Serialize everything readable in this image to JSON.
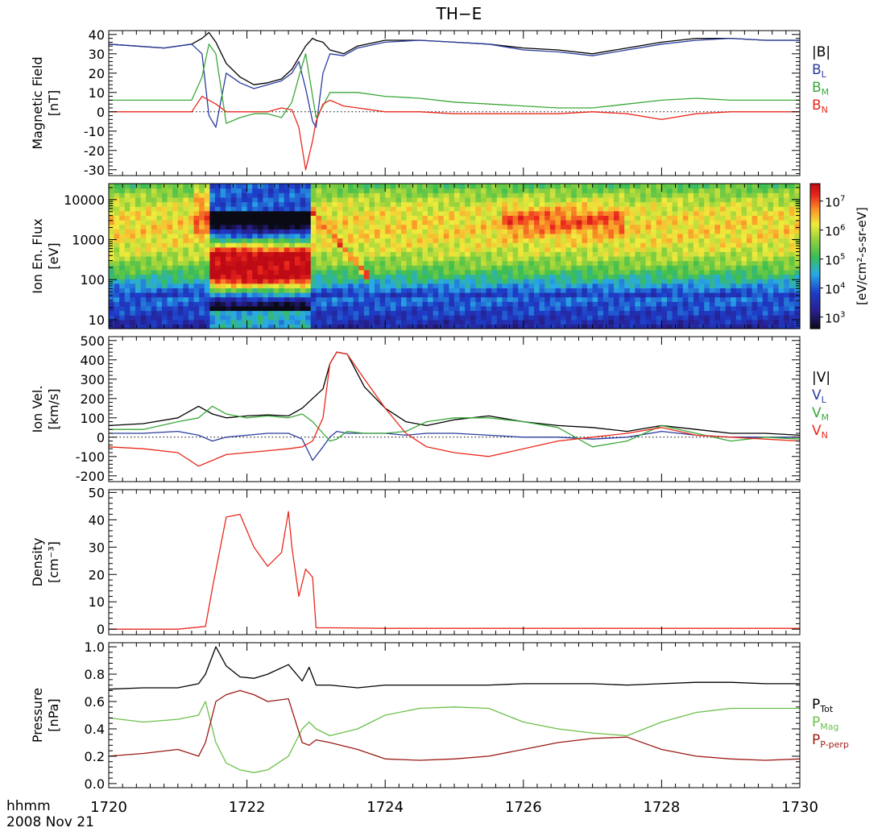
{
  "title": "TH−E",
  "time_axis": {
    "label_line1": "hhmm",
    "label_line2": "2008 Nov 21",
    "range": [
      1720,
      1730
    ],
    "ticks": [
      "1720",
      "1722",
      "1724",
      "1726",
      "1728",
      "1730"
    ],
    "tick_values": [
      0,
      2,
      4,
      6,
      8,
      10
    ]
  },
  "colors": {
    "black": "#000000",
    "blue": "#2b3c9e",
    "green": "#3aa83a",
    "red": "#e8291c",
    "darkred": "#9a1a14",
    "lightgreen": "#6cc04a"
  },
  "chart_data": [
    {
      "id": "bfield",
      "type": "line",
      "ylabel_line1": "Magnetic Field",
      "ylabel_line2": "[nT]",
      "ylim": [
        -33,
        42
      ],
      "yticks": [
        -30,
        -20,
        -10,
        0,
        10,
        20,
        30,
        40
      ],
      "zero_line": true,
      "x": [
        0,
        0.4,
        0.8,
        1.2,
        1.35,
        1.45,
        1.55,
        1.7,
        1.9,
        2.1,
        2.3,
        2.5,
        2.65,
        2.75,
        2.85,
        2.95,
        3.0,
        3.1,
        3.2,
        3.4,
        3.6,
        4.0,
        4.5,
        5.0,
        5.5,
        6.0,
        6.5,
        7.0,
        7.5,
        8.0,
        8.5,
        9.0,
        9.5,
        10
      ],
      "series": [
        {
          "name": "|B|",
          "legend": "|B|",
          "sub": "",
          "color": "#000000",
          "values": [
            35,
            34,
            33,
            35,
            38,
            41,
            36,
            25,
            18,
            14,
            15,
            17,
            22,
            28,
            34,
            38,
            37,
            36,
            32,
            30,
            34,
            37,
            37,
            36,
            35,
            33,
            32,
            30,
            33,
            36,
            38,
            38,
            37,
            37
          ]
        },
        {
          "name": "B_L",
          "legend": "B",
          "sub": "L",
          "color": "#2b3c9e",
          "values": [
            35,
            34,
            33,
            35,
            30,
            -2,
            -8,
            20,
            15,
            12,
            14,
            16,
            20,
            26,
            12,
            -5,
            -8,
            20,
            30,
            29,
            33,
            36,
            37,
            36,
            35,
            32,
            31,
            29,
            32,
            35,
            37,
            38,
            37,
            37
          ]
        },
        {
          "name": "B_M",
          "legend": "B",
          "sub": "M",
          "color": "#3aa83a",
          "values": [
            6,
            6,
            6,
            6,
            18,
            35,
            30,
            -6,
            -3,
            -1,
            -1,
            -3,
            5,
            18,
            30,
            8,
            -3,
            3,
            10,
            10,
            10,
            8,
            7,
            5,
            4,
            3,
            2,
            2,
            4,
            6,
            7,
            6,
            6,
            6
          ]
        },
        {
          "name": "B_N",
          "legend": "B",
          "sub": "N",
          "color": "#e8291c",
          "values": [
            0,
            0,
            0,
            0,
            8,
            6,
            4,
            0,
            0,
            0,
            0,
            2,
            1,
            -8,
            -30,
            -15,
            -5,
            4,
            6,
            3,
            2,
            0,
            0,
            -1,
            -1,
            -1,
            -1,
            0,
            -1,
            -4,
            -1,
            0,
            0,
            0
          ]
        }
      ],
      "legend_entries": [
        "|B|",
        "B_L",
        "B_M",
        "B_N"
      ]
    },
    {
      "id": "spectrogram",
      "type": "heatmap",
      "ylabel_line1": "Ion En. Flux",
      "ylabel_line2": "[eV]",
      "ylim": [
        6,
        25000
      ],
      "log_y": true,
      "yticks": [
        10,
        100,
        1000,
        10000
      ],
      "colorbar": {
        "label": "[eV/cm²-s-sr-eV]",
        "range_log10": [
          2.6,
          7.6
        ],
        "ticks": [
          {
            "base": "10",
            "exp": "3",
            "log": 3
          },
          {
            "base": "10",
            "exp": "4",
            "log": 4
          },
          {
            "base": "10",
            "exp": "5",
            "log": 5
          },
          {
            "base": "10",
            "exp": "6",
            "log": 6
          },
          {
            "base": "10",
            "exp": "7",
            "log": 7
          }
        ]
      }
    },
    {
      "id": "velocity",
      "type": "line",
      "ylabel_line1": "Ion Vel.",
      "ylabel_line2": "[km/s]",
      "ylim": [
        -230,
        520
      ],
      "yticks": [
        -200,
        -100,
        0,
        100,
        200,
        300,
        400,
        500
      ],
      "zero_line": true,
      "x": [
        0,
        0.5,
        1.0,
        1.3,
        1.5,
        1.7,
        2.0,
        2.3,
        2.6,
        2.8,
        2.95,
        3.1,
        3.2,
        3.3,
        3.45,
        3.7,
        4.0,
        4.3,
        4.6,
        5.0,
        5.5,
        6.0,
        6.5,
        7.0,
        7.5,
        8.0,
        8.5,
        9.0,
        9.5,
        10
      ],
      "series": [
        {
          "name": "|V|",
          "legend": "|V|",
          "sub": "",
          "color": "#000000",
          "values": [
            60,
            70,
            100,
            160,
            120,
            100,
            110,
            115,
            110,
            150,
            200,
            250,
            380,
            440,
            430,
            260,
            150,
            80,
            60,
            90,
            110,
            80,
            60,
            50,
            30,
            60,
            40,
            20,
            20,
            10
          ]
        },
        {
          "name": "V_L",
          "legend": "V",
          "sub": "L",
          "color": "#2b3c9e",
          "values": [
            20,
            20,
            30,
            10,
            -20,
            0,
            10,
            20,
            20,
            -10,
            -120,
            -50,
            0,
            30,
            20,
            20,
            20,
            10,
            20,
            20,
            10,
            0,
            0,
            -10,
            0,
            30,
            10,
            0,
            0,
            0
          ]
        },
        {
          "name": "V_M",
          "legend": "V",
          "sub": "M",
          "color": "#3aa83a",
          "values": [
            40,
            40,
            80,
            100,
            160,
            120,
            100,
            110,
            100,
            120,
            80,
            20,
            -20,
            -10,
            30,
            20,
            20,
            30,
            80,
            100,
            100,
            80,
            50,
            -50,
            -20,
            60,
            20,
            -20,
            0,
            -10
          ]
        },
        {
          "name": "V_N",
          "legend": "V",
          "sub": "N",
          "color": "#e8291c",
          "values": [
            -50,
            -60,
            -80,
            -150,
            -120,
            -90,
            -80,
            -70,
            -60,
            -50,
            -20,
            100,
            380,
            440,
            430,
            300,
            150,
            20,
            -50,
            -80,
            -100,
            -60,
            -20,
            0,
            20,
            50,
            10,
            0,
            -10,
            -20
          ]
        }
      ],
      "legend_entries": [
        "|V|",
        "V_L",
        "V_M",
        "V_N"
      ]
    },
    {
      "id": "density",
      "type": "line",
      "ylabel_line1": "Density",
      "ylabel_line2": "[cm⁻³]",
      "ylim": [
        -2,
        51
      ],
      "yticks": [
        0,
        10,
        20,
        30,
        40,
        50
      ],
      "x": [
        0,
        1.0,
        1.4,
        1.5,
        1.7,
        1.9,
        2.1,
        2.3,
        2.5,
        2.6,
        2.65,
        2.75,
        2.85,
        2.95,
        3.0,
        3.3,
        4.0,
        6.0,
        8.0,
        10
      ],
      "series": [
        {
          "name": "Density",
          "legend": "",
          "sub": "",
          "color": "#e8291c",
          "values": [
            0,
            0,
            1,
            15,
            41,
            42,
            30,
            23,
            28,
            43,
            30,
            12,
            22,
            19,
            0.5,
            0.5,
            0.3,
            0.3,
            0.3,
            0.3
          ]
        }
      ],
      "legend_entries": []
    },
    {
      "id": "pressure",
      "type": "line",
      "ylabel_line1": "Pressure",
      "ylabel_line2": "[nPa]",
      "ylim": [
        -0.03,
        1.03
      ],
      "yticks": [
        0.0,
        0.2,
        0.4,
        0.6,
        0.8,
        1.0
      ],
      "tick_decimals": 1,
      "x": [
        0,
        0.5,
        1.0,
        1.3,
        1.4,
        1.55,
        1.7,
        1.9,
        2.1,
        2.3,
        2.6,
        2.8,
        2.9,
        3.0,
        3.2,
        3.6,
        4.0,
        4.5,
        5.0,
        5.5,
        6.0,
        6.5,
        7.0,
        7.5,
        8.0,
        8.5,
        9.0,
        9.5,
        10
      ],
      "series": [
        {
          "name": "P_Tot",
          "legend": "P",
          "sub": "Tot",
          "color": "#000000",
          "values": [
            0.69,
            0.7,
            0.7,
            0.73,
            0.8,
            1.0,
            0.86,
            0.78,
            0.77,
            0.8,
            0.87,
            0.75,
            0.85,
            0.72,
            0.72,
            0.7,
            0.72,
            0.72,
            0.72,
            0.72,
            0.73,
            0.73,
            0.73,
            0.72,
            0.73,
            0.74,
            0.74,
            0.73,
            0.73
          ]
        },
        {
          "name": "P_Mag",
          "legend": "P",
          "sub": "Mag",
          "color": "#6cc04a",
          "values": [
            0.48,
            0.45,
            0.47,
            0.5,
            0.6,
            0.3,
            0.15,
            0.1,
            0.08,
            0.1,
            0.2,
            0.4,
            0.45,
            0.4,
            0.35,
            0.4,
            0.5,
            0.55,
            0.56,
            0.55,
            0.45,
            0.4,
            0.37,
            0.35,
            0.45,
            0.52,
            0.55,
            0.55,
            0.55
          ]
        },
        {
          "name": "P_P-perp",
          "legend": "P",
          "sub": "P-perp",
          "color": "#9a1a14",
          "values": [
            0.2,
            0.22,
            0.25,
            0.2,
            0.3,
            0.6,
            0.65,
            0.68,
            0.65,
            0.6,
            0.62,
            0.3,
            0.28,
            0.32,
            0.3,
            0.25,
            0.18,
            0.17,
            0.18,
            0.2,
            0.25,
            0.3,
            0.33,
            0.34,
            0.25,
            0.2,
            0.18,
            0.17,
            0.18
          ]
        }
      ],
      "legend_entries": [
        "P_Tot",
        "P_Mag",
        "P_P-perp"
      ]
    }
  ]
}
